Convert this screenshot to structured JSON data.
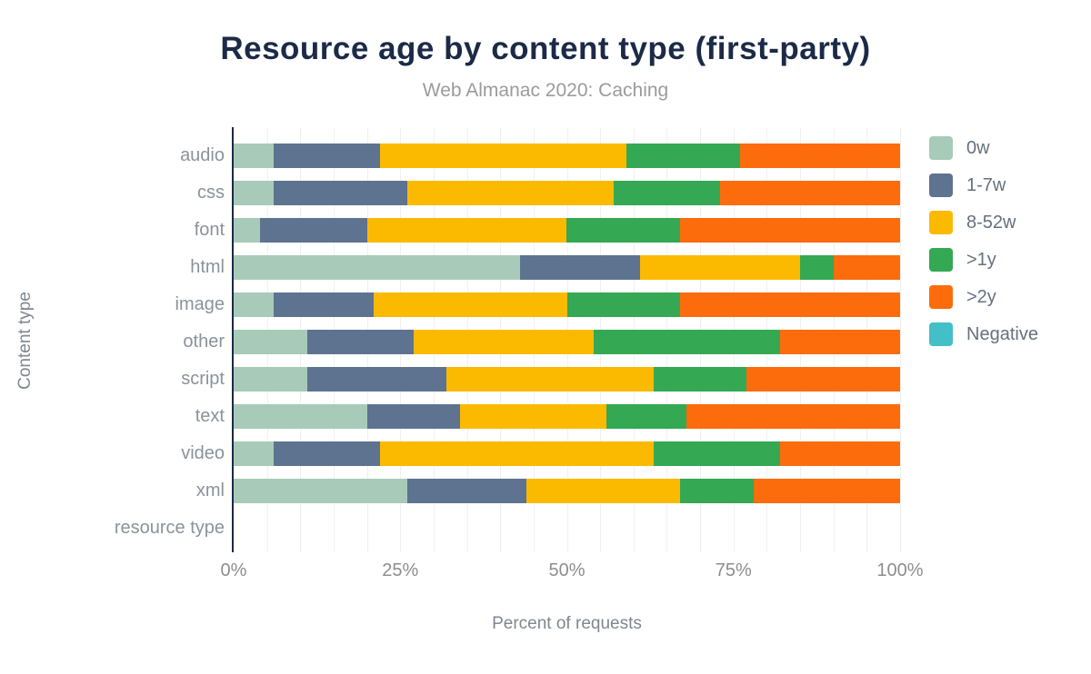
{
  "chart": {
    "title": "Resource age by content type (first-party)",
    "subtitle": "Web Almanac 2020: Caching",
    "xlabel": "Percent of requests",
    "ylabel": "Content type"
  },
  "chart_data": {
    "type": "bar",
    "stacked": true,
    "orientation": "horizontal",
    "title": "Resource age by content type (first-party)",
    "subtitle": "Web Almanac 2020: Caching",
    "xlabel": "Percent of requests",
    "ylabel": "Content type",
    "xlim": [
      0,
      100
    ],
    "x_tick_labels": [
      "0%",
      "25%",
      "50%",
      "75%",
      "100%"
    ],
    "x_tick_values": [
      0,
      25,
      50,
      75,
      100
    ],
    "grid": "vertical, every 5%",
    "legend_position": "right",
    "categories": [
      "audio",
      "css",
      "font",
      "html",
      "image",
      "other",
      "script",
      "text",
      "video",
      "xml",
      "resource type"
    ],
    "series": [
      {
        "name": "0w",
        "color": "#a7cbb8",
        "values": [
          6,
          6,
          4,
          43,
          6,
          11,
          11,
          20,
          6,
          26,
          0
        ]
      },
      {
        "name": "1-7w",
        "color": "#5e7390",
        "values": [
          16,
          20,
          16,
          18,
          15,
          16,
          21,
          14,
          16,
          18,
          0
        ]
      },
      {
        "name": "8-52w",
        "color": "#fbba00",
        "values": [
          37,
          31,
          30,
          24,
          29,
          27,
          31,
          22,
          41,
          23,
          0
        ]
      },
      {
        "name": ">1y",
        "color": "#34a853",
        "values": [
          17,
          16,
          17,
          5,
          17,
          28,
          14,
          12,
          19,
          11,
          0
        ]
      },
      {
        "name": ">2y",
        "color": "#fc6c0c",
        "values": [
          24,
          27,
          33,
          10,
          33,
          18,
          23,
          32,
          18,
          22,
          0
        ]
      },
      {
        "name": "Negative",
        "color": "#42bfc7",
        "values": [
          0,
          0,
          0,
          0,
          0,
          0,
          0,
          0,
          0,
          0,
          0
        ]
      }
    ]
  },
  "colors": {
    "title": "#1b2a47",
    "axis_line": "#1b2a47",
    "subtitle": "#9b9b9b",
    "tick_label": "#8d8d8d",
    "category_label": "#8b929b",
    "gridline": "#f0f0f0"
  }
}
